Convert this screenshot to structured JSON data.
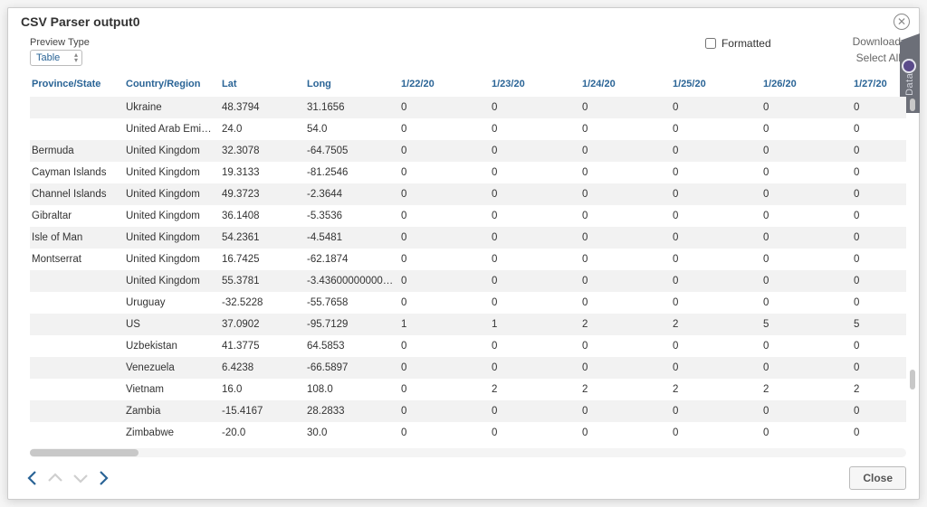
{
  "modal": {
    "title": "CSV Parser output0",
    "preview_label": "Preview Type",
    "preview_value": "Table",
    "formatted_label": "Formatted",
    "formatted_checked": false,
    "download_label": "Download",
    "selectall_label": "Select All",
    "close_label": "Close",
    "side_tab_label": "DataViz"
  },
  "table": {
    "columns": [
      "Province/State",
      "Country/Region",
      "Lat",
      "Long",
      "1/22/20",
      "1/23/20",
      "1/24/20",
      "1/25/20",
      "1/26/20",
      "1/27/20"
    ],
    "column_widths": [
      "c-prov",
      "c-country",
      "c-lat",
      "c-long",
      "c-date",
      "c-date",
      "c-date",
      "c-date",
      "c-date",
      "c-datelast"
    ],
    "header_color": "#2a6496",
    "row_alt_bg": "#f2f2f2",
    "rows": [
      [
        "",
        "Ukraine",
        "48.3794",
        "31.1656",
        "0",
        "0",
        "0",
        "0",
        "0",
        "0"
      ],
      [
        "",
        "United Arab Emira…",
        "24.0",
        "54.0",
        "0",
        "0",
        "0",
        "0",
        "0",
        "0"
      ],
      [
        "Bermuda",
        "United Kingdom",
        "32.3078",
        "-64.7505",
        "0",
        "0",
        "0",
        "0",
        "0",
        "0"
      ],
      [
        "Cayman Islands",
        "United Kingdom",
        "19.3133",
        "-81.2546",
        "0",
        "0",
        "0",
        "0",
        "0",
        "0"
      ],
      [
        "Channel Islands",
        "United Kingdom",
        "49.3723",
        "-2.3644",
        "0",
        "0",
        "0",
        "0",
        "0",
        "0"
      ],
      [
        "Gibraltar",
        "United Kingdom",
        "36.1408",
        "-5.3536",
        "0",
        "0",
        "0",
        "0",
        "0",
        "0"
      ],
      [
        "Isle of Man",
        "United Kingdom",
        "54.2361",
        "-4.5481",
        "0",
        "0",
        "0",
        "0",
        "0",
        "0"
      ],
      [
        "Montserrat",
        "United Kingdom",
        "16.7425",
        "-62.1874",
        "0",
        "0",
        "0",
        "0",
        "0",
        "0"
      ],
      [
        "",
        "United Kingdom",
        "55.3781",
        "-3.43600000000000…",
        "0",
        "0",
        "0",
        "0",
        "0",
        "0"
      ],
      [
        "",
        "Uruguay",
        "-32.5228",
        "-55.7658",
        "0",
        "0",
        "0",
        "0",
        "0",
        "0"
      ],
      [
        "",
        "US",
        "37.0902",
        "-95.7129",
        "1",
        "1",
        "2",
        "2",
        "5",
        "5"
      ],
      [
        "",
        "Uzbekistan",
        "41.3775",
        "64.5853",
        "0",
        "0",
        "0",
        "0",
        "0",
        "0"
      ],
      [
        "",
        "Venezuela",
        "6.4238",
        "-66.5897",
        "0",
        "0",
        "0",
        "0",
        "0",
        "0"
      ],
      [
        "",
        "Vietnam",
        "16.0",
        "108.0",
        "0",
        "2",
        "2",
        "2",
        "2",
        "2"
      ],
      [
        "",
        "Zambia",
        "-15.4167",
        "28.2833",
        "0",
        "0",
        "0",
        "0",
        "0",
        "0"
      ],
      [
        "",
        "Zimbabwe",
        "-20.0",
        "30.0",
        "0",
        "0",
        "0",
        "0",
        "0",
        "0"
      ]
    ]
  },
  "scroll": {
    "h_thumb_width": 120,
    "h_thumb_left": 0
  },
  "nav": {
    "prev_enabled": true,
    "up_enabled": false,
    "down_enabled": false,
    "next_enabled": true,
    "enabled_color": "#2a6496",
    "disabled_color": "#cfcfcf"
  }
}
